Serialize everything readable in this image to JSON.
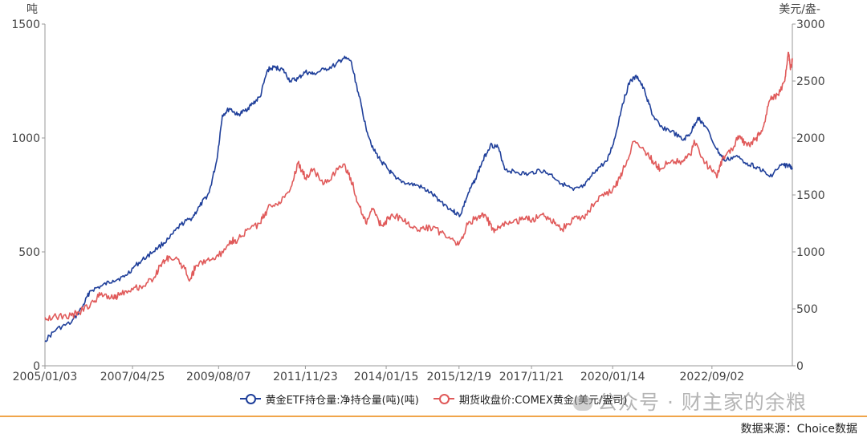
{
  "chart_data": {
    "type": "line",
    "left_axis_unit": "吨",
    "right_axis_unit": "美元/盎-",
    "y_left_ticks": [
      "1500",
      "1000",
      "500",
      "0"
    ],
    "y_left_range": [
      0,
      1500
    ],
    "y_right_ticks": [
      "3000",
      "2500",
      "2000",
      "1500",
      "1000",
      "500",
      "0"
    ],
    "y_right_range": [
      0,
      3000
    ],
    "x_tick_labels": [
      "2005/01/03",
      "2007/04/25",
      "2009/08/07",
      "2011/11/23",
      "2014/01/15",
      "2015/12/19",
      "2017/11/21",
      "2020/01/14",
      "2022/09/02"
    ],
    "x_range": [
      2005.0,
      2024.8
    ],
    "x_tick_positions": [
      2005.0,
      2007.32,
      2009.6,
      2011.9,
      2014.04,
      2015.97,
      2017.89,
      2020.04,
      2022.67
    ],
    "grid": false,
    "series": [
      {
        "name": "黄金ETF持仓量:净持仓量(吨)(吨)",
        "axis": "left",
        "color": "#1f3f9a",
        "points": [
          [
            2005.0,
            110
          ],
          [
            2005.3,
            160
          ],
          [
            2005.7,
            190
          ],
          [
            2006.0,
            260
          ],
          [
            2006.2,
            330
          ],
          [
            2006.5,
            350
          ],
          [
            2006.8,
            375
          ],
          [
            2007.1,
            390
          ],
          [
            2007.4,
            440
          ],
          [
            2007.7,
            480
          ],
          [
            2008.0,
            520
          ],
          [
            2008.3,
            560
          ],
          [
            2008.6,
            620
          ],
          [
            2008.9,
            650
          ],
          [
            2009.1,
            700
          ],
          [
            2009.35,
            760
          ],
          [
            2009.55,
            900
          ],
          [
            2009.7,
            1100
          ],
          [
            2009.9,
            1130
          ],
          [
            2010.1,
            1100
          ],
          [
            2010.3,
            1120
          ],
          [
            2010.5,
            1150
          ],
          [
            2010.7,
            1180
          ],
          [
            2010.9,
            1300
          ],
          [
            2011.1,
            1310
          ],
          [
            2011.3,
            1300
          ],
          [
            2011.5,
            1250
          ],
          [
            2011.7,
            1260
          ],
          [
            2011.9,
            1290
          ],
          [
            2012.1,
            1280
          ],
          [
            2012.4,
            1300
          ],
          [
            2012.7,
            1320
          ],
          [
            2012.9,
            1350
          ],
          [
            2013.1,
            1340
          ],
          [
            2013.3,
            1200
          ],
          [
            2013.5,
            1050
          ],
          [
            2013.7,
            950
          ],
          [
            2013.9,
            900
          ],
          [
            2014.1,
            860
          ],
          [
            2014.3,
            820
          ],
          [
            2014.6,
            800
          ],
          [
            2014.9,
            790
          ],
          [
            2015.2,
            760
          ],
          [
            2015.5,
            720
          ],
          [
            2015.8,
            680
          ],
          [
            2016.0,
            660
          ],
          [
            2016.2,
            750
          ],
          [
            2016.4,
            820
          ],
          [
            2016.6,
            900
          ],
          [
            2016.8,
            970
          ],
          [
            2017.0,
            960
          ],
          [
            2017.2,
            860
          ],
          [
            2017.5,
            850
          ],
          [
            2017.8,
            840
          ],
          [
            2018.1,
            860
          ],
          [
            2018.4,
            840
          ],
          [
            2018.7,
            800
          ],
          [
            2019.0,
            770
          ],
          [
            2019.3,
            790
          ],
          [
            2019.6,
            860
          ],
          [
            2019.9,
            900
          ],
          [
            2020.1,
            1000
          ],
          [
            2020.3,
            1150
          ],
          [
            2020.5,
            1250
          ],
          [
            2020.7,
            1270
          ],
          [
            2020.9,
            1200
          ],
          [
            2021.1,
            1100
          ],
          [
            2021.3,
            1050
          ],
          [
            2021.6,
            1030
          ],
          [
            2021.9,
            990
          ],
          [
            2022.1,
            1020
          ],
          [
            2022.3,
            1090
          ],
          [
            2022.5,
            1050
          ],
          [
            2022.8,
            950
          ],
          [
            2023.0,
            900
          ],
          [
            2023.3,
            920
          ],
          [
            2023.6,
            890
          ],
          [
            2023.9,
            870
          ],
          [
            2024.2,
            830
          ],
          [
            2024.5,
            880
          ],
          [
            2024.7,
            880
          ],
          [
            2024.8,
            870
          ]
        ]
      },
      {
        "name": "期货收盘价:COMEX黄金(美元/盎司)",
        "axis": "right",
        "color": "#e05a5a",
        "points": [
          [
            2005.0,
            425
          ],
          [
            2005.3,
            430
          ],
          [
            2005.7,
            440
          ],
          [
            2005.9,
            470
          ],
          [
            2006.3,
            560
          ],
          [
            2006.5,
            640
          ],
          [
            2006.8,
            590
          ],
          [
            2007.0,
            640
          ],
          [
            2007.3,
            680
          ],
          [
            2007.6,
            700
          ],
          [
            2007.9,
            780
          ],
          [
            2008.1,
            900
          ],
          [
            2008.3,
            960
          ],
          [
            2008.6,
            900
          ],
          [
            2008.85,
            760
          ],
          [
            2009.0,
            880
          ],
          [
            2009.3,
            930
          ],
          [
            2009.6,
            960
          ],
          [
            2009.9,
            1100
          ],
          [
            2010.1,
            1100
          ],
          [
            2010.4,
            1200
          ],
          [
            2010.7,
            1250
          ],
          [
            2010.9,
            1380
          ],
          [
            2011.2,
            1440
          ],
          [
            2011.5,
            1550
          ],
          [
            2011.7,
            1780
          ],
          [
            2011.9,
            1650
          ],
          [
            2012.1,
            1720
          ],
          [
            2012.4,
            1600
          ],
          [
            2012.7,
            1700
          ],
          [
            2012.9,
            1770
          ],
          [
            2013.1,
            1650
          ],
          [
            2013.3,
            1420
          ],
          [
            2013.5,
            1250
          ],
          [
            2013.7,
            1380
          ],
          [
            2013.9,
            1230
          ],
          [
            2014.1,
            1290
          ],
          [
            2014.3,
            1320
          ],
          [
            2014.6,
            1250
          ],
          [
            2014.9,
            1190
          ],
          [
            2015.2,
            1220
          ],
          [
            2015.5,
            1170
          ],
          [
            2015.8,
            1120
          ],
          [
            2015.95,
            1060
          ],
          [
            2016.2,
            1240
          ],
          [
            2016.5,
            1320
          ],
          [
            2016.7,
            1300
          ],
          [
            2016.9,
            1170
          ],
          [
            2017.1,
            1230
          ],
          [
            2017.4,
            1260
          ],
          [
            2017.7,
            1290
          ],
          [
            2017.9,
            1280
          ],
          [
            2018.2,
            1340
          ],
          [
            2018.5,
            1250
          ],
          [
            2018.7,
            1200
          ],
          [
            2019.0,
            1290
          ],
          [
            2019.3,
            1290
          ],
          [
            2019.5,
            1420
          ],
          [
            2019.8,
            1490
          ],
          [
            2020.1,
            1570
          ],
          [
            2020.3,
            1700
          ],
          [
            2020.6,
            1970
          ],
          [
            2020.9,
            1880
          ],
          [
            2021.1,
            1800
          ],
          [
            2021.3,
            1730
          ],
          [
            2021.6,
            1800
          ],
          [
            2021.9,
            1790
          ],
          [
            2022.1,
            1850
          ],
          [
            2022.2,
            1980
          ],
          [
            2022.5,
            1780
          ],
          [
            2022.8,
            1650
          ],
          [
            2022.95,
            1820
          ],
          [
            2023.2,
            1900
          ],
          [
            2023.4,
            2020
          ],
          [
            2023.6,
            1930
          ],
          [
            2023.8,
            1980
          ],
          [
            2024.0,
            2060
          ],
          [
            2024.2,
            2330
          ],
          [
            2024.4,
            2380
          ],
          [
            2024.6,
            2500
          ],
          [
            2024.7,
            2750
          ],
          [
            2024.75,
            2600
          ],
          [
            2024.8,
            2700
          ]
        ]
      }
    ]
  },
  "legend": {
    "item1": "黄金ETF持仓量:净持仓量(吨)(吨)",
    "item2": "期货收盘价:COMEX黄金(美元/盎司)"
  },
  "watermark": "公众号 · 财主家的余粮",
  "source": "数据来源：Choice数据"
}
